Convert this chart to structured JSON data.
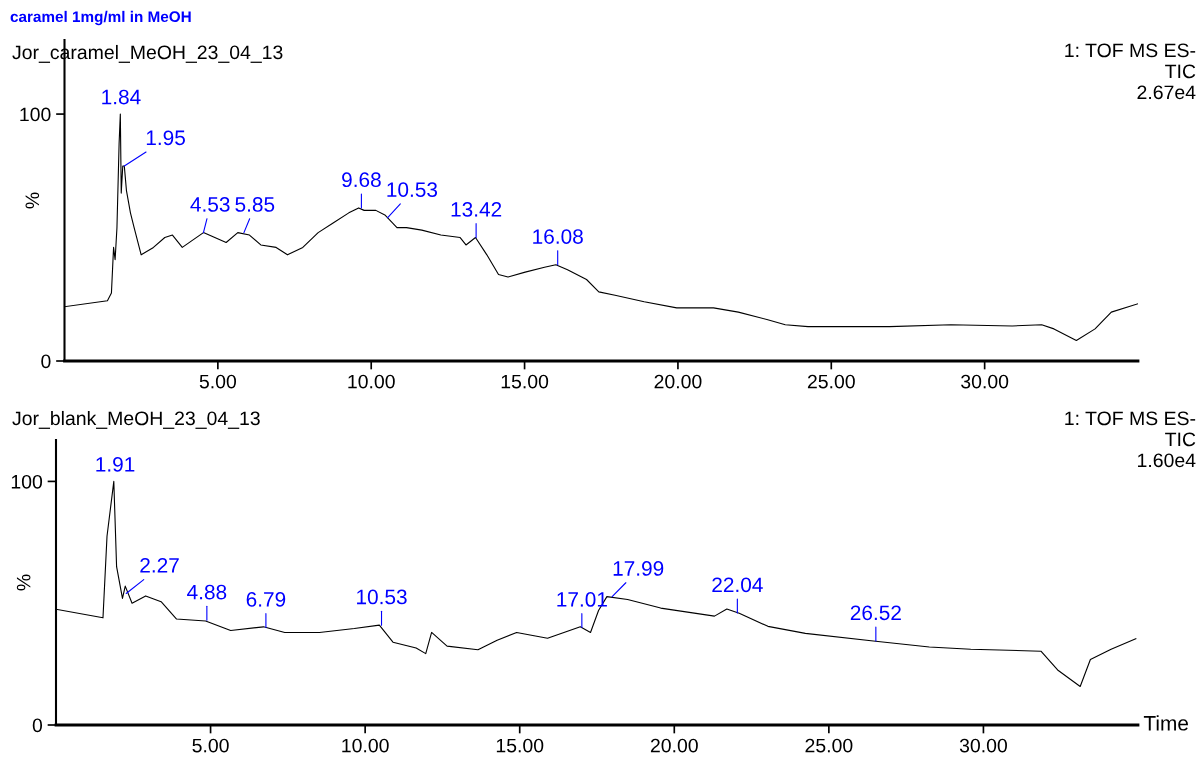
{
  "chart_data": [
    {
      "type": "line",
      "title": "caramel 1mg/ml in MeOH",
      "subtitle": "Jor_caramel_MeOH_23_04_13",
      "ylabel": "%",
      "x": [
        0,
        1.4,
        1.53,
        1.6,
        1.65,
        1.71,
        1.78,
        1.82,
        1.85,
        1.9,
        1.95,
        2.02,
        2.15,
        2.27,
        2.5,
        2.9,
        3.27,
        3.52,
        3.84,
        4.53,
        5.27,
        5.65,
        6.03,
        6.4,
        6.9,
        7.27,
        7.77,
        8.27,
        8.77,
        9.27,
        9.59,
        9.77,
        10.15,
        10.46,
        10.84,
        11.15,
        11.65,
        12.27,
        12.9,
        13.09,
        13.4,
        13.77,
        14.15,
        14.46,
        15.02,
        15.65,
        16.02,
        16.4,
        17.02,
        17.42,
        17.95,
        18.9,
        19.96,
        21.16,
        21.97,
        22.9,
        23.5,
        24.24,
        26.9,
        28.9,
        30.9,
        31.86,
        32.26,
        32.99,
        33.6,
        34.13,
        35.0
      ],
      "series": [
        {
          "color": "#000000",
          "values": [
            22,
            24.4,
            27.5,
            46,
            41,
            54,
            88,
            100,
            68,
            79,
            79,
            69,
            60,
            54,
            43,
            46,
            50,
            51,
            46,
            52,
            48,
            52,
            51,
            47,
            46,
            43,
            46,
            52,
            56,
            60,
            62,
            61,
            61,
            59,
            54,
            54,
            53,
            51,
            50,
            47,
            50,
            43,
            35,
            34,
            36,
            38,
            39,
            37,
            33,
            28,
            26.6,
            24,
            21.5,
            21.5,
            19.8,
            16.8,
            14.7,
            13.9,
            13.9,
            14.7,
            14.2,
            14.7,
            13,
            8.3,
            13,
            19.8,
            23.2
          ]
        }
      ],
      "xlim": [
        0,
        35
      ],
      "ylim": [
        0,
        130
      ],
      "xticks": [
        {
          "value": 5,
          "label": "5.00"
        },
        {
          "value": 10,
          "label": "10.00"
        },
        {
          "value": 15,
          "label": "15.00"
        },
        {
          "value": 20,
          "label": "20.00"
        },
        {
          "value": 25,
          "label": "25.00"
        },
        {
          "value": 30,
          "label": "30.00"
        }
      ],
      "yticks": [
        0,
        100
      ],
      "grid": false,
      "legend": false,
      "marker": "none",
      "line_style": "solid",
      "annotations": [
        "1: TOF MS ES-",
        "TIC",
        "2.67e4",
        {
          "text": "1.84",
          "x": 1.84,
          "y": 100
        },
        {
          "text": "1.95",
          "x": 1.95,
          "y": 79
        },
        {
          "text": "4.53",
          "x": 4.53,
          "y": 52
        },
        {
          "text": "5.85",
          "x": 5.85,
          "y": 52
        },
        {
          "text": "9.68",
          "x": 9.68,
          "y": 62
        },
        {
          "text": "10.53",
          "x": 10.53,
          "y": 58
        },
        {
          "text": "13.42",
          "x": 13.42,
          "y": 50
        },
        {
          "text": "16.08",
          "x": 16.08,
          "y": 39
        }
      ]
    },
    {
      "type": "line",
      "subtitle": "Jor_blank_MeOH_23_04_13",
      "ylabel": "%",
      "xlabel": "Time",
      "x": [
        0,
        1.52,
        1.65,
        1.87,
        1.96,
        2.15,
        2.24,
        2.46,
        2.9,
        3.4,
        3.9,
        4.84,
        5.65,
        6.71,
        7.4,
        8.52,
        9.65,
        10.46,
        10.9,
        11.65,
        11.96,
        12.15,
        12.65,
        13.65,
        14.27,
        14.9,
        15.9,
        16.96,
        17.29,
        17.55,
        17.82,
        18.49,
        19.56,
        21.3,
        21.7,
        22.1,
        23.03,
        24.24,
        26.44,
        28.25,
        29.59,
        31.86,
        32.4,
        33.13,
        33.46,
        34.13,
        34.93
      ],
      "series": [
        {
          "color": "#000000",
          "values": [
            47.5,
            44,
            77.5,
            100,
            65,
            52,
            57,
            50,
            53,
            50.6,
            43.5,
            42.7,
            38.8,
            40.3,
            38,
            38,
            39.6,
            41,
            34,
            31.6,
            29.3,
            38,
            32.4,
            30.9,
            34.8,
            38,
            35.6,
            40.3,
            38,
            47,
            52.7,
            51.5,
            48,
            44.7,
            47.6,
            45.9,
            40.5,
            37.6,
            34.5,
            32,
            31.1,
            30.3,
            22.6,
            15.8,
            26.9,
            31.1,
            35.4
          ]
        }
      ],
      "xlim": [
        0,
        35
      ],
      "ylim": [
        0,
        117
      ],
      "xticks": [
        {
          "value": 5,
          "label": "5.00"
        },
        {
          "value": 10,
          "label": "10.00"
        },
        {
          "value": 15,
          "label": "15.00"
        },
        {
          "value": 20,
          "label": "20.00"
        },
        {
          "value": 25,
          "label": "25.00"
        },
        {
          "value": 30,
          "label": "30.00"
        }
      ],
      "yticks": [
        0,
        100
      ],
      "grid": false,
      "legend": false,
      "marker": "none",
      "line_style": "solid",
      "annotations": [
        "1: TOF MS ES-",
        "TIC",
        "1.60e4",
        {
          "text": "1.91",
          "x": 1.91,
          "y": 100
        },
        {
          "text": "2.27",
          "x": 2.27,
          "y": 54
        },
        {
          "text": "4.88",
          "x": 4.88,
          "y": 43
        },
        {
          "text": "6.79",
          "x": 6.79,
          "y": 40
        },
        {
          "text": "10.53",
          "x": 10.53,
          "y": 41
        },
        {
          "text": "17.01",
          "x": 17.01,
          "y": 40
        },
        {
          "text": "17.99",
          "x": 17.99,
          "y": 52.7
        },
        {
          "text": "22.04",
          "x": 22.04,
          "y": 46
        },
        {
          "text": "26.52",
          "x": 26.52,
          "y": 34.5
        }
      ]
    }
  ]
}
